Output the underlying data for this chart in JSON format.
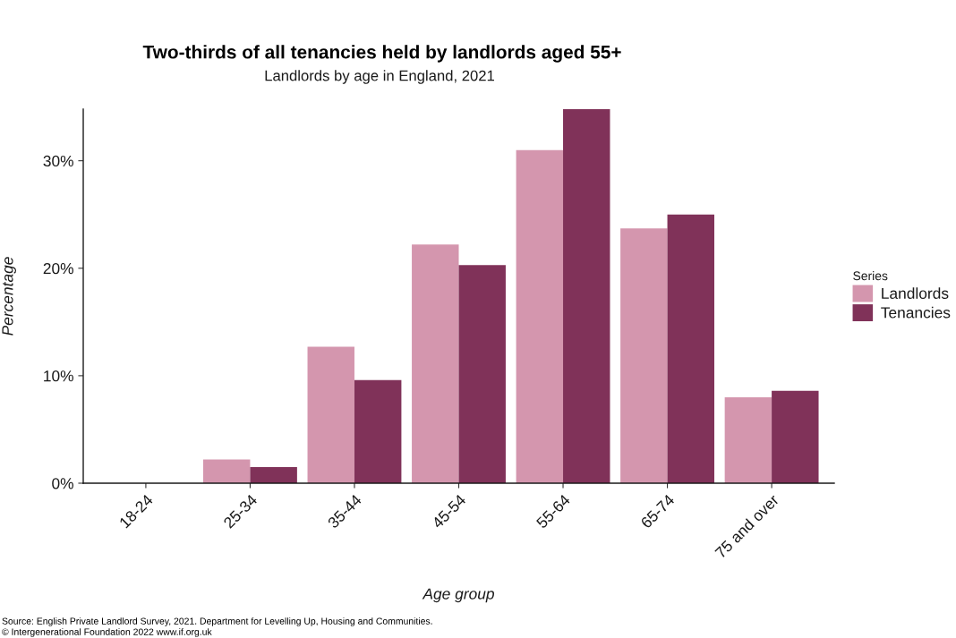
{
  "chart_data": {
    "type": "bar",
    "title": "Two-thirds of all tenancies held by landlords aged 55+",
    "subtitle": "Landlords by age in England, 2021",
    "xlabel": "Age group",
    "ylabel": "Percentage",
    "legend_title": "Series",
    "categories": [
      "18-24",
      "25-34",
      "35-44",
      "45-54",
      "55-64",
      "65-74",
      "75 and over"
    ],
    "series": [
      {
        "name": "Landlords",
        "color": "#d496ae",
        "values": [
          0,
          2.2,
          12.7,
          22.2,
          31.0,
          23.7,
          8.0
        ]
      },
      {
        "name": "Tenancies",
        "color": "#803259",
        "values": [
          0,
          1.5,
          9.6,
          20.3,
          34.8,
          25.0,
          8.6
        ]
      }
    ],
    "ylim": [
      0,
      34.8
    ],
    "yticks": [
      {
        "value": 0,
        "label": "0%"
      },
      {
        "value": 10,
        "label": "10%"
      },
      {
        "value": 20,
        "label": "20%"
      },
      {
        "value": 30,
        "label": "30%"
      }
    ],
    "legend": "right",
    "annotations": [
      "Source: English Private Landlord Survey, 2021. Department for Levelling Up, Housing and Communities.",
      "© Intergenerational Foundation 2022 www.if.org.uk"
    ]
  }
}
